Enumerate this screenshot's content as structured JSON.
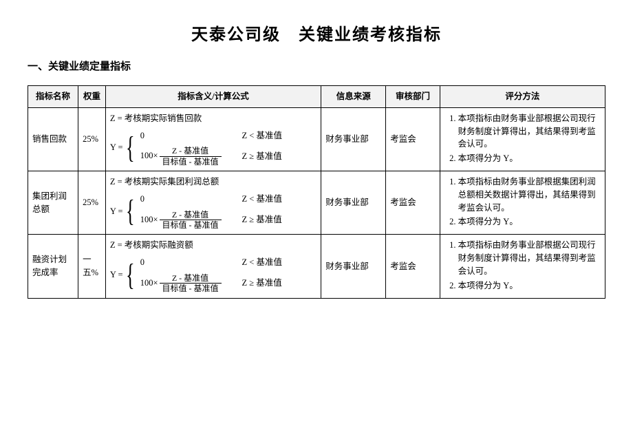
{
  "title": "天泰公司级　关键业绩考核指标",
  "section1": "一、关键业绩定量指标",
  "columns": {
    "name": "指标名称",
    "weight": "权重",
    "formula": "指标含义/计算公式",
    "source": "信息来源",
    "dept": "审核部门",
    "scoring": "评分方法"
  },
  "col_widths": {
    "name": "70px",
    "weight": "38px",
    "formula": "300px",
    "source": "90px",
    "dept": "75px",
    "scoring": "230px"
  },
  "colors": {
    "header_bg": "#f2f2f2",
    "border": "#000000",
    "text": "#000000"
  },
  "frac_num": "Z - 基准值",
  "frac_den": "目标值 - 基准值",
  "cond_lt": "Z < 基准值",
  "cond_ge": "Z ≥ 基准值",
  "rows": [
    {
      "name": "销售回款",
      "weight": "25%",
      "z_def": "Z = 考核期实际销售回款",
      "source": "财务事业部",
      "dept": "考监会",
      "scoring": [
        "本项指标由财务事业部根据公司现行财务制度计算得出，其结果得到考监会认可。",
        "本项得分为 Y。"
      ]
    },
    {
      "name": "集团利润总额",
      "weight": "25%",
      "z_def": "Z = 考核期实际集团利润总额",
      "source": "财务事业部",
      "dept": "考监会",
      "scoring": [
        "本项指标由财务事业部根据集团利润总额相关数据计算得出，其结果得到考监会认可。",
        "本项得分为 Y。"
      ]
    },
    {
      "name": "融资计划完成率",
      "weight": "一五%",
      "z_def": "Z = 考核期实际融资额",
      "source": "财务事业部",
      "dept": "考监会",
      "scoring": [
        "本项指标由财务事业部根据公司现行财务制度计算得出，其结果得到考监会认可。",
        "本项得分为 Y。"
      ]
    }
  ]
}
